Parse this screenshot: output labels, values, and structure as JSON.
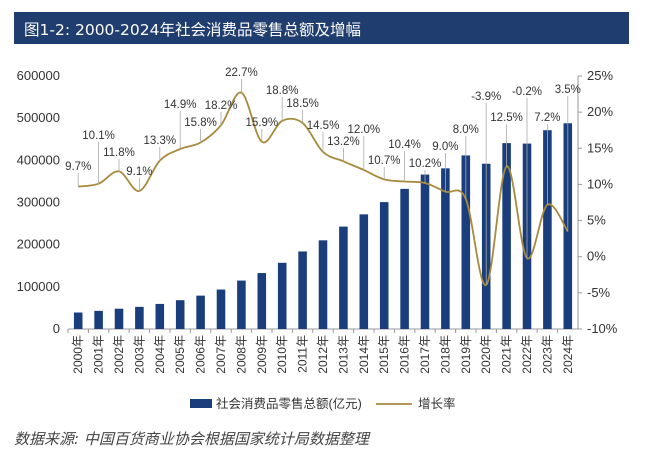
{
  "title": "图1-2:    2000-2024年社会消费品零售总额及增幅",
  "source": "数据来源: 中国百货商业协会根据国家统计局数据整理",
  "colors": {
    "title_bg": "#1f3d6e",
    "bar": "#1a3e7c",
    "line": "#a88a3c"
  },
  "chart_data": {
    "type": "bar+line",
    "categories": [
      "2000年",
      "2001年",
      "2002年",
      "2003年",
      "2004年",
      "2005年",
      "2006年",
      "2007年",
      "2008年",
      "2009年",
      "2010年",
      "2011年",
      "2012年",
      "2013年",
      "2014年",
      "2015年",
      "2016年",
      "2017年",
      "2018年",
      "2019年",
      "2020年",
      "2021年",
      "2022年",
      "2023年",
      "2024年"
    ],
    "series": [
      {
        "name": "社会消费品零售总额(亿元)",
        "type": "bar",
        "axis": "left",
        "values": [
          39106,
          43055,
          48136,
          52516,
          59501,
          68353,
          79145,
          93572,
          114830,
          132678,
          156998,
          183919,
          210307,
          242843,
          271896,
          300931,
          332316,
          366262,
          380987,
          411649,
          391981,
          440823,
          439733,
          471495,
          487895
        ]
      },
      {
        "name": "增长率",
        "type": "line",
        "axis": "right",
        "values": [
          9.7,
          10.1,
          11.8,
          9.1,
          13.3,
          14.9,
          15.8,
          18.2,
          22.7,
          15.9,
          18.8,
          18.5,
          14.5,
          13.2,
          12.0,
          10.7,
          10.4,
          10.2,
          9.0,
          8.0,
          -3.9,
          12.5,
          -0.2,
          7.2,
          3.5
        ],
        "labels": [
          "9.7%",
          "10.1%",
          "11.8%",
          "9.1%",
          "13.3%",
          "14.9%",
          "15.8%",
          "18.2%",
          "22.7%",
          "15.9%",
          "18.8%",
          "18.5%",
          "14.5%",
          "13.2%",
          "12.0%",
          "10.7%",
          "10.4%",
          "10.2%",
          "9.0%",
          "8.0%",
          "-3.9%",
          "12.5%",
          "-0.2%",
          "7.2%",
          "3.5%"
        ]
      }
    ],
    "y_left": {
      "ylim": [
        0,
        600000
      ],
      "ticks": [
        "0",
        "100000",
        "200000",
        "300000",
        "400000",
        "500000",
        "600000"
      ]
    },
    "y_right": {
      "ylim": [
        -10,
        25
      ],
      "ticks": [
        "-10%",
        "-5%",
        "0%",
        "5%",
        "10%",
        "15%",
        "20%",
        "25%"
      ]
    },
    "legend_position": "bottom-center",
    "grid": false
  }
}
